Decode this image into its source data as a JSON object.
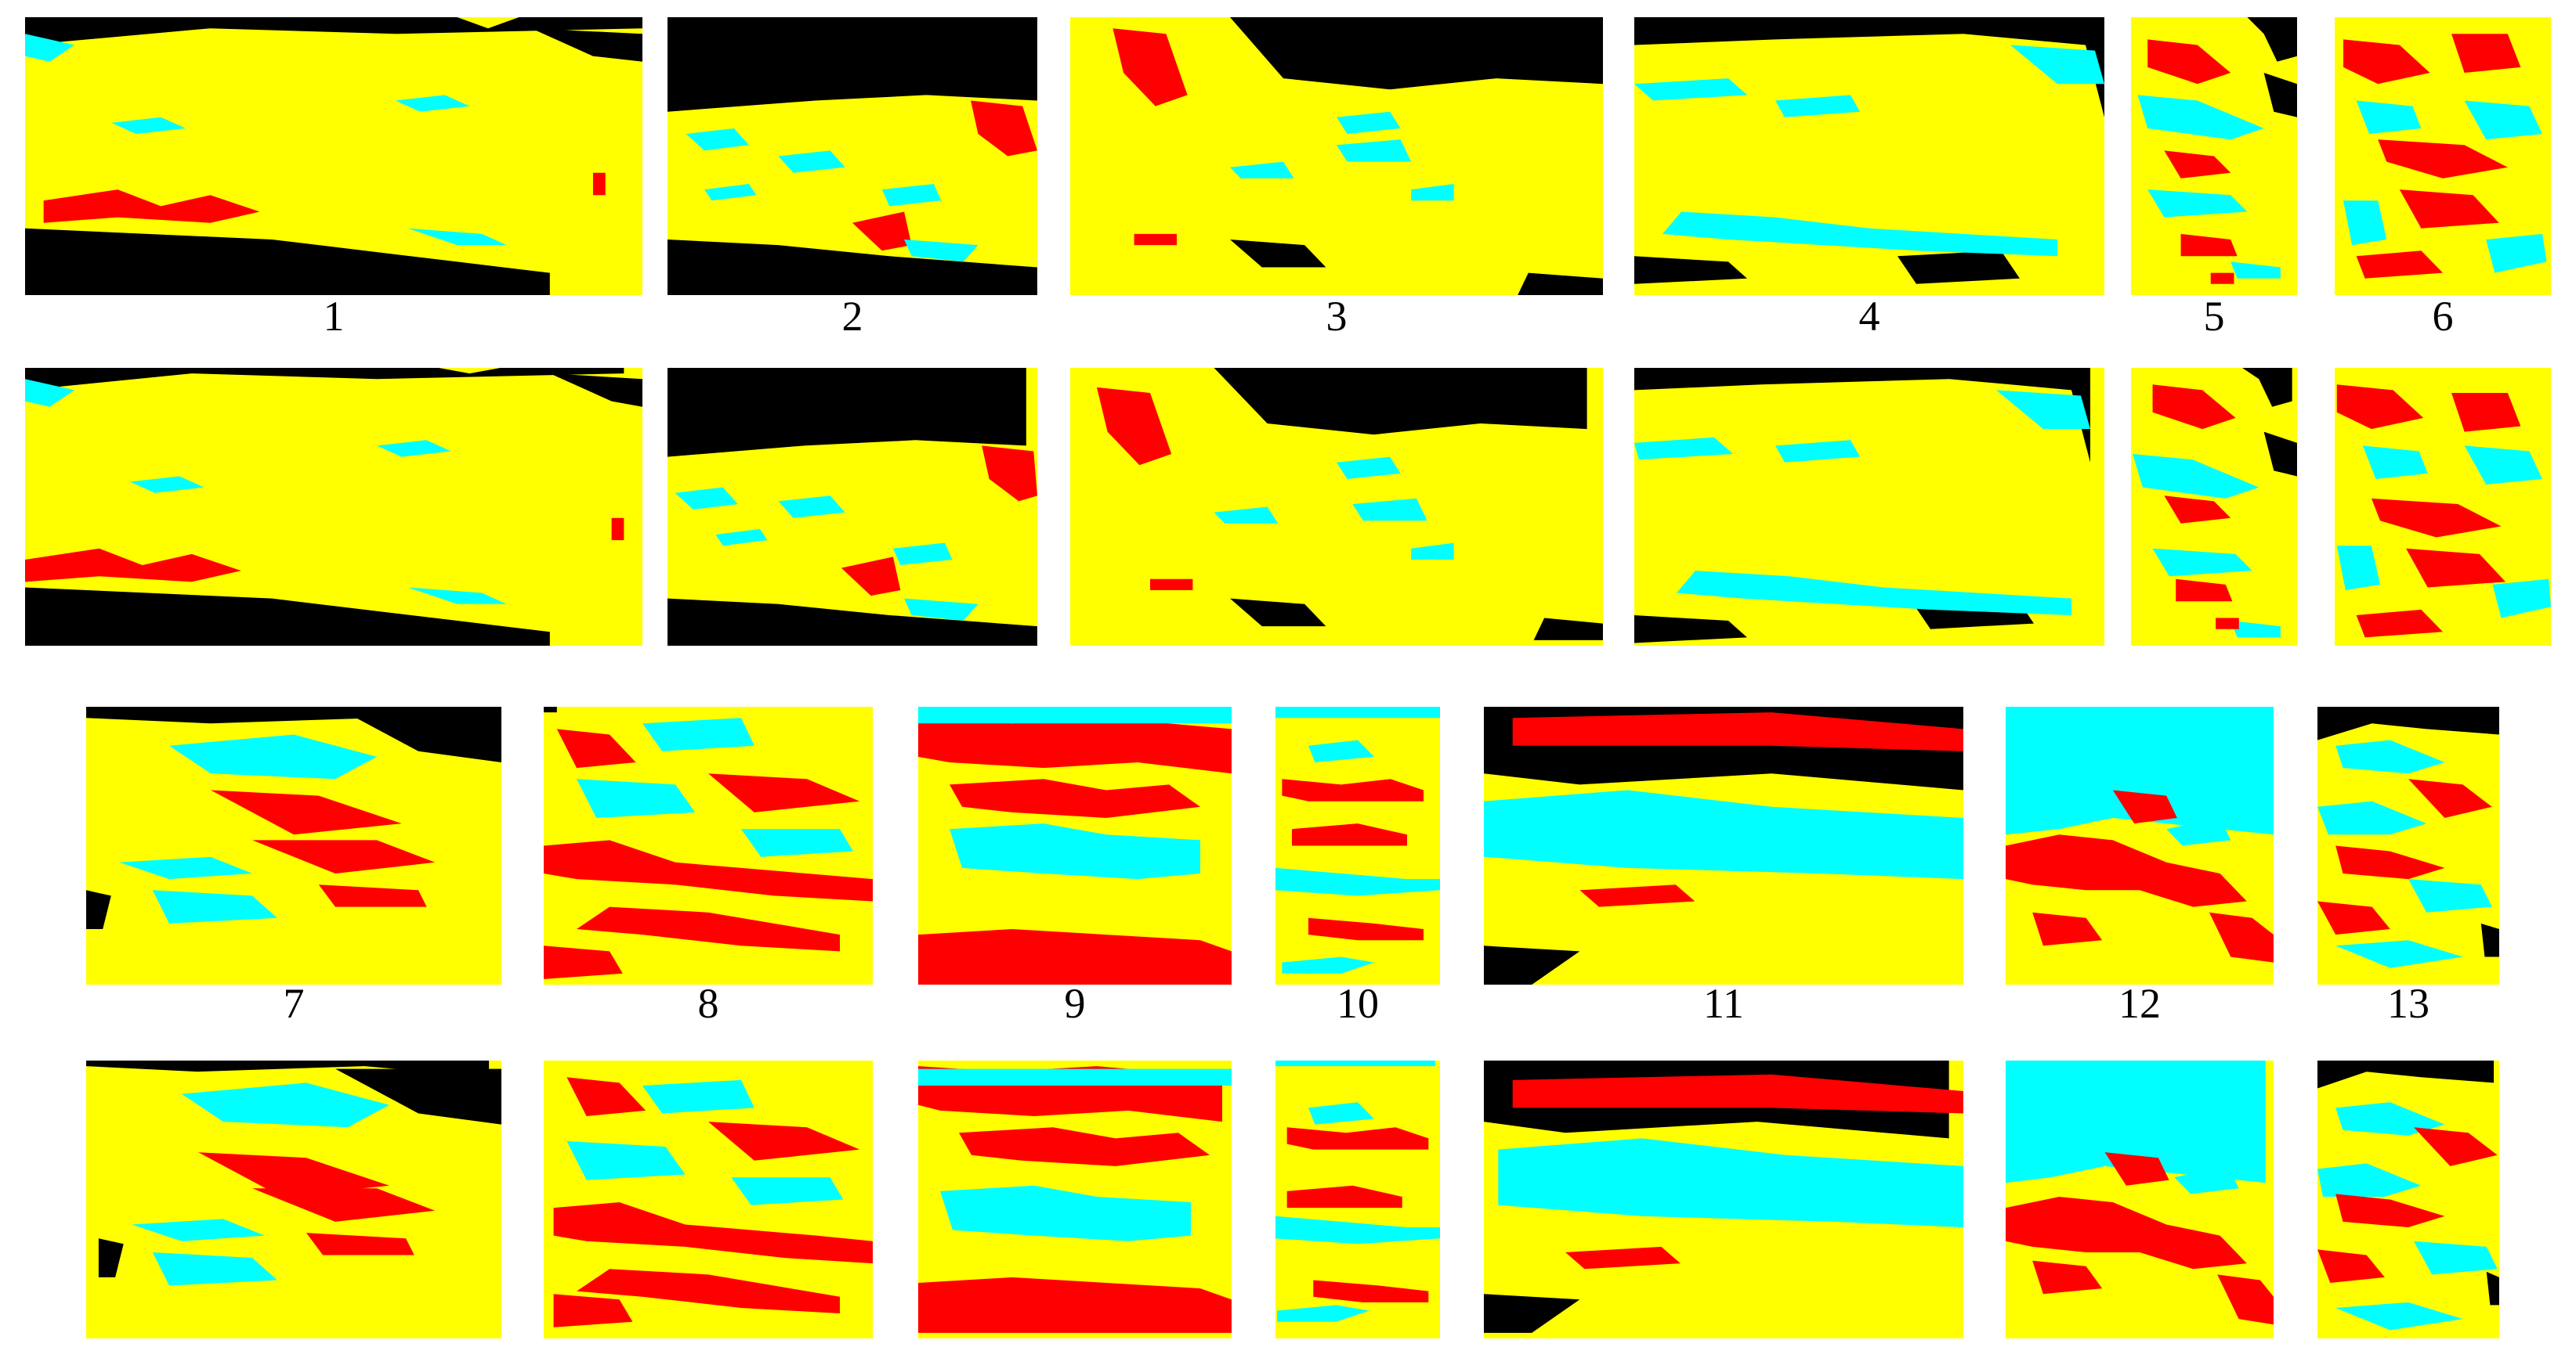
{
  "colors": {
    "background": "#000000",
    "class_yellow": "#ffff00",
    "class_cyan": "#00ffff",
    "class_red": "#ff0000"
  },
  "row1_labels": [
    "1",
    "2",
    "3",
    "4",
    "5",
    "6"
  ],
  "row2_labels": [
    "7",
    "8",
    "9",
    "10",
    "11",
    "12",
    "13"
  ]
}
